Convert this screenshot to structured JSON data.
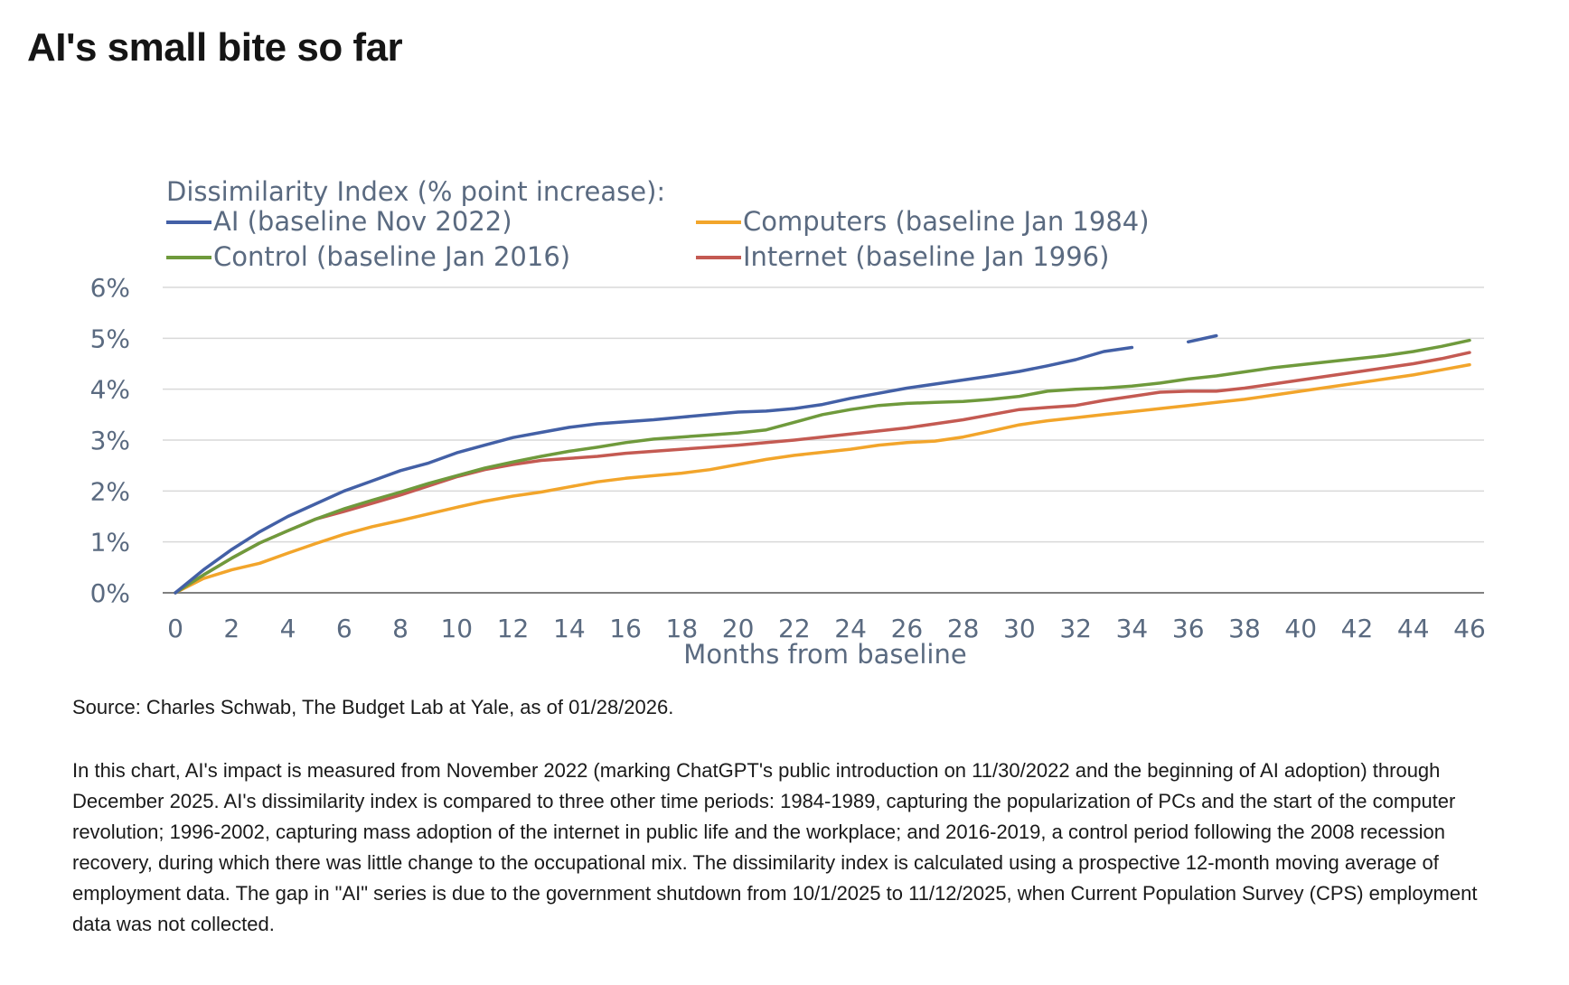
{
  "page": {
    "title": "AI's small bite so far",
    "source": "Source: Charles Schwab, The Budget Lab at Yale, as of 01/28/2026.",
    "note": "In this chart, AI's impact is measured from November 2022 (marking ChatGPT's public introduction on 11/30/2022 and the beginning of AI adoption) through December 2025. AI's dissimilarity index is compared to three other time periods: 1984-1989, capturing the popularization of PCs and the start of the computer revolution; 1996-2002, capturing mass adoption of the internet in public life and the workplace; and 2016-2019, a control period following the 2008 recession recovery, during which there was little change to the occupational mix. The dissimilarity index is calculated using a prospective 12-month moving average of employment data. The gap in \"AI\" series is due to the government shutdown from 10/1/2025 to 11/12/2025, when Current Population Survey (CPS) employment data was not collected."
  },
  "chart_data": {
    "type": "line",
    "title": "Dissimilarity Index (% point increase):",
    "xlabel": "Months from baseline",
    "ylabel": "",
    "xlim": [
      0,
      46
    ],
    "ylim": [
      0,
      6
    ],
    "x_ticks": [
      "0",
      "2",
      "4",
      "6",
      "8",
      "10",
      "12",
      "14",
      "16",
      "18",
      "20",
      "22",
      "24",
      "26",
      "28",
      "30",
      "32",
      "34",
      "36",
      "38",
      "40",
      "42",
      "44",
      "46"
    ],
    "y_ticks": [
      "0%",
      "1%",
      "2%",
      "3%",
      "4%",
      "5%",
      "6%"
    ],
    "grid": "horizontal",
    "legend_position": "top-left",
    "colors": {
      "ai": "#4360a6",
      "computers": "#f2a52b",
      "control": "#6f9a3c",
      "internet": "#c45a52",
      "grid": "#d9d9d9",
      "axis": "#808080",
      "text": "#5a6a80"
    },
    "series": [
      {
        "name": "AI (baseline Nov 2022)",
        "key": "ai",
        "color": "#4360a6",
        "x": [
          0,
          1,
          2,
          3,
          4,
          5,
          6,
          7,
          8,
          9,
          10,
          11,
          12,
          13,
          14,
          15,
          16,
          17,
          18,
          19,
          20,
          21,
          22,
          23,
          24,
          25,
          26,
          27,
          28,
          29,
          30,
          31,
          32,
          33,
          34,
          35,
          36,
          37
        ],
        "y": [
          0,
          0.45,
          0.85,
          1.2,
          1.5,
          1.75,
          2.0,
          2.2,
          2.4,
          2.55,
          2.75,
          2.9,
          3.05,
          3.15,
          3.25,
          3.32,
          3.36,
          3.4,
          3.45,
          3.5,
          3.55,
          3.57,
          3.62,
          3.7,
          3.82,
          3.92,
          4.02,
          4.1,
          4.18,
          4.26,
          4.35,
          4.46,
          4.58,
          4.74,
          4.82,
          null,
          4.93,
          5.05
        ]
      },
      {
        "name": "Computers (baseline Jan 1984)",
        "key": "computers",
        "color": "#f2a52b",
        "x": [
          0,
          1,
          2,
          3,
          4,
          5,
          6,
          7,
          8,
          9,
          10,
          11,
          12,
          13,
          14,
          15,
          16,
          17,
          18,
          19,
          20,
          21,
          22,
          23,
          24,
          25,
          26,
          27,
          28,
          29,
          30,
          31,
          32,
          33,
          34,
          35,
          36,
          37,
          38,
          39,
          40,
          41,
          42,
          43,
          44,
          45,
          46
        ],
        "y": [
          0,
          0.28,
          0.45,
          0.58,
          0.78,
          0.97,
          1.15,
          1.3,
          1.42,
          1.55,
          1.68,
          1.8,
          1.9,
          1.98,
          2.08,
          2.18,
          2.25,
          2.3,
          2.35,
          2.42,
          2.52,
          2.62,
          2.7,
          2.76,
          2.82,
          2.9,
          2.95,
          2.98,
          3.06,
          3.18,
          3.3,
          3.38,
          3.44,
          3.5,
          3.56,
          3.62,
          3.68,
          3.74,
          3.8,
          3.88,
          3.96,
          4.04,
          4.12,
          4.2,
          4.28,
          4.38,
          4.48
        ]
      },
      {
        "name": "Control (baseline Jan 2016)",
        "key": "control",
        "color": "#6f9a3c",
        "x": [
          0,
          1,
          2,
          3,
          4,
          5,
          6,
          7,
          8,
          9,
          10,
          11,
          12,
          13,
          14,
          15,
          16,
          17,
          18,
          19,
          20,
          21,
          22,
          23,
          24,
          25,
          26,
          27,
          28,
          29,
          30,
          31,
          32,
          33,
          34,
          35,
          36,
          37,
          38,
          39,
          40,
          41,
          42,
          43,
          44,
          45,
          46
        ],
        "y": [
          0,
          0.35,
          0.68,
          0.98,
          1.22,
          1.45,
          1.65,
          1.82,
          1.98,
          2.15,
          2.3,
          2.45,
          2.57,
          2.68,
          2.78,
          2.86,
          2.95,
          3.02,
          3.06,
          3.1,
          3.14,
          3.2,
          3.35,
          3.5,
          3.6,
          3.68,
          3.72,
          3.74,
          3.76,
          3.8,
          3.86,
          3.96,
          4.0,
          4.02,
          4.06,
          4.12,
          4.2,
          4.26,
          4.34,
          4.42,
          4.48,
          4.54,
          4.6,
          4.66,
          4.74,
          4.84,
          4.96
        ]
      },
      {
        "name": "Internet (baseline Jan 1996)",
        "key": "internet",
        "color": "#c45a52",
        "x": [
          0,
          1,
          2,
          3,
          4,
          5,
          6,
          7,
          8,
          9,
          10,
          11,
          12,
          13,
          14,
          15,
          16,
          17,
          18,
          19,
          20,
          21,
          22,
          23,
          24,
          25,
          26,
          27,
          28,
          29,
          30,
          31,
          32,
          33,
          34,
          35,
          36,
          37,
          38,
          39,
          40,
          41,
          42,
          43,
          44,
          45,
          46
        ],
        "y": [
          0,
          0.35,
          0.68,
          0.98,
          1.22,
          1.45,
          1.6,
          1.76,
          1.92,
          2.1,
          2.28,
          2.42,
          2.52,
          2.6,
          2.64,
          2.68,
          2.74,
          2.78,
          2.82,
          2.86,
          2.9,
          2.95,
          3.0,
          3.06,
          3.12,
          3.18,
          3.24,
          3.32,
          3.4,
          3.5,
          3.6,
          3.64,
          3.68,
          3.78,
          3.86,
          3.94,
          3.96,
          3.96,
          4.02,
          4.1,
          4.18,
          4.26,
          4.34,
          4.42,
          4.5,
          4.6,
          4.72
        ]
      }
    ]
  }
}
